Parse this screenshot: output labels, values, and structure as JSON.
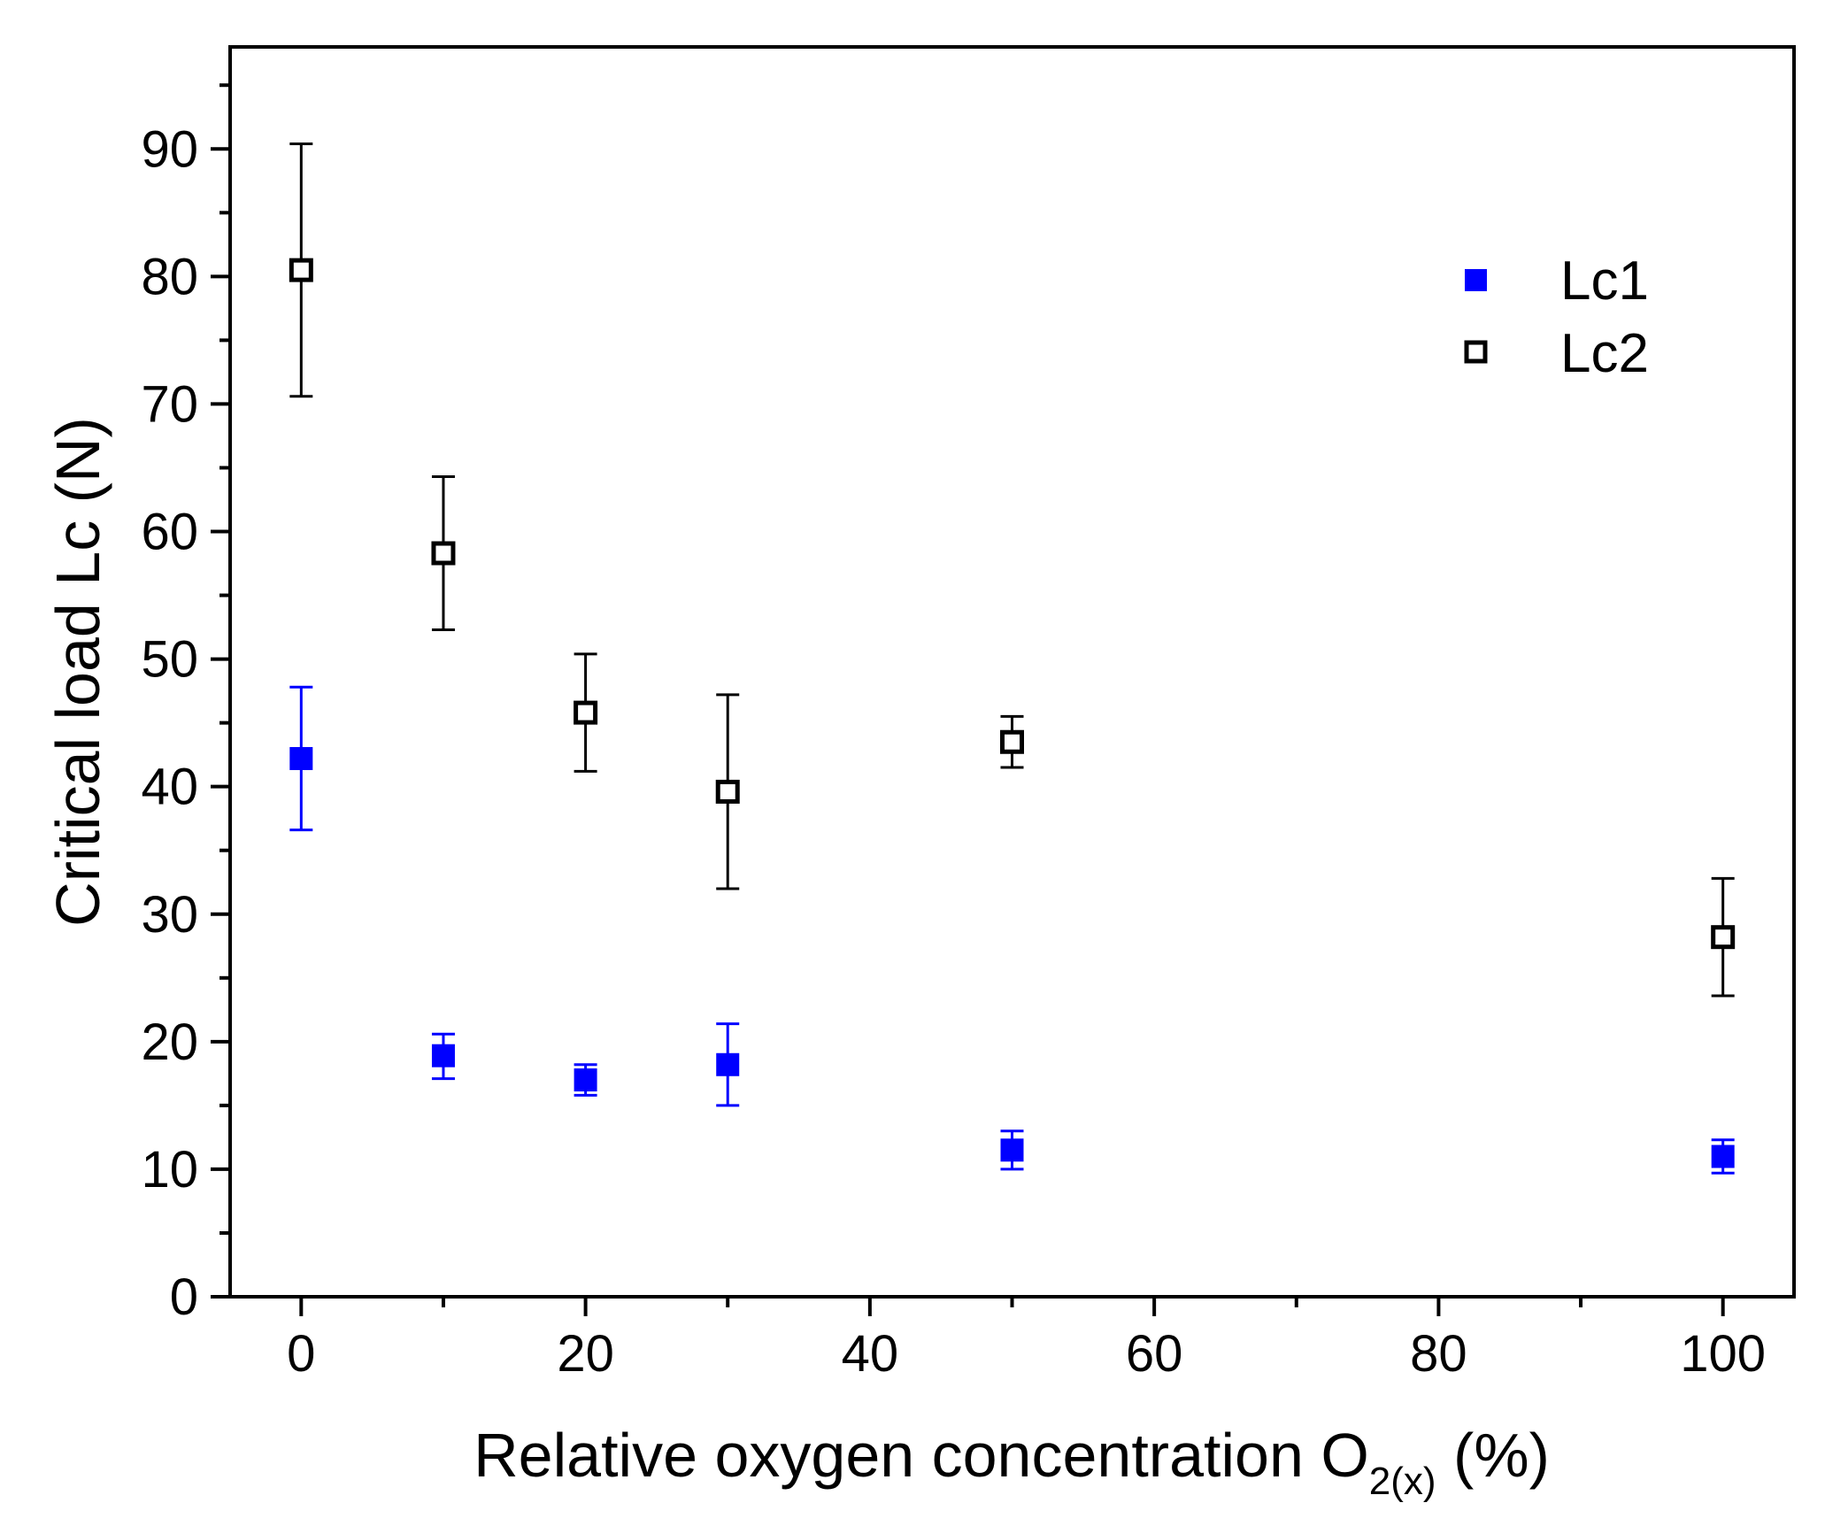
{
  "chart_data": {
    "type": "scatter",
    "title": "",
    "xlabel_main": "Relative oxygen concentration O",
    "xlabel_sub": "2(x)",
    "xlabel_tail": " (%)",
    "ylabel": "Critical load Lc (N)",
    "xlim": [
      -5,
      105
    ],
    "ylim": [
      0,
      98
    ],
    "x_ticks": [
      0,
      20,
      40,
      60,
      80,
      100
    ],
    "x_minor_ticks": [
      10,
      30,
      50,
      70,
      90
    ],
    "y_ticks": [
      0,
      10,
      20,
      30,
      40,
      50,
      60,
      70,
      80,
      90
    ],
    "y_minor_ticks": [
      5,
      15,
      25,
      35,
      45,
      55,
      65,
      75,
      85,
      95
    ],
    "grid": false,
    "legend_position": "top-right",
    "series": [
      {
        "name": "Lc1",
        "marker": "filled-square",
        "color": "#0000ff",
        "points": [
          {
            "x": 0,
            "y": 42.2,
            "err_low": 36.6,
            "err_high": 47.8
          },
          {
            "x": 10,
            "y": 18.9,
            "err_low": 17.1,
            "err_high": 20.6
          },
          {
            "x": 20,
            "y": 17.0,
            "err_low": 15.8,
            "err_high": 18.2
          },
          {
            "x": 30,
            "y": 18.2,
            "err_low": 15.0,
            "err_high": 21.4
          },
          {
            "x": 50,
            "y": 11.5,
            "err_low": 10.0,
            "err_high": 13.0
          },
          {
            "x": 100,
            "y": 11.0,
            "err_low": 9.7,
            "err_high": 12.3
          }
        ]
      },
      {
        "name": "Lc2",
        "marker": "open-square",
        "color": "#000000",
        "points": [
          {
            "x": 0,
            "y": 80.5,
            "err_low": 70.6,
            "err_high": 90.4
          },
          {
            "x": 10,
            "y": 58.3,
            "err_low": 52.3,
            "err_high": 64.3
          },
          {
            "x": 20,
            "y": 45.8,
            "err_low": 41.2,
            "err_high": 50.4
          },
          {
            "x": 30,
            "y": 39.6,
            "err_low": 32.0,
            "err_high": 47.2
          },
          {
            "x": 50,
            "y": 43.5,
            "err_low": 41.5,
            "err_high": 45.5
          },
          {
            "x": 100,
            "y": 28.2,
            "err_low": 23.6,
            "err_high": 32.8
          }
        ]
      }
    ]
  }
}
